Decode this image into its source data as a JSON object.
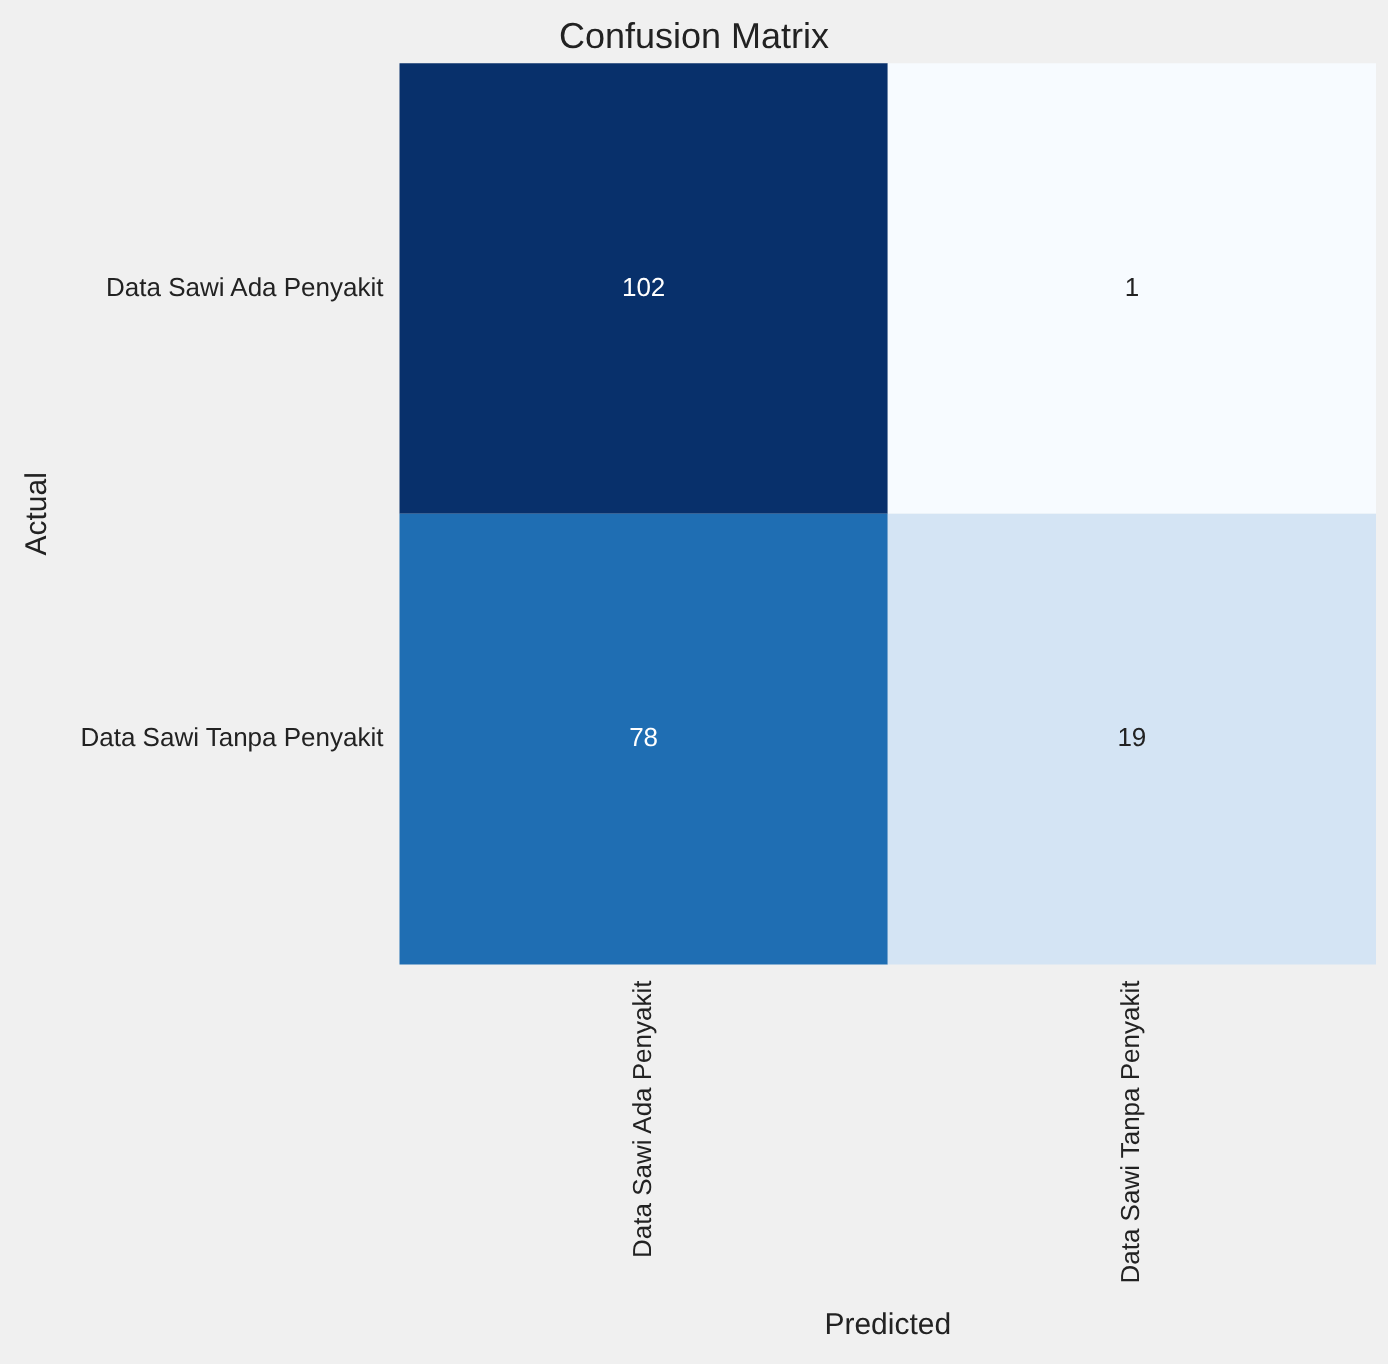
{
  "chart_data": {
    "type": "heatmap",
    "title": "Confusion Matrix",
    "xlabel": "Predicted",
    "ylabel": "Actual",
    "categories": [
      "Data Sawi Ada Penyakit",
      "Data Sawi Tanpa Penyakit"
    ],
    "y_categories": [
      "Data Sawi Ada Penyakit",
      "Data Sawi Tanpa Penyakit"
    ],
    "cells": [
      [
        102,
        1
      ],
      [
        78,
        19
      ]
    ],
    "data_labels": true,
    "grid": false,
    "legend": false
  }
}
